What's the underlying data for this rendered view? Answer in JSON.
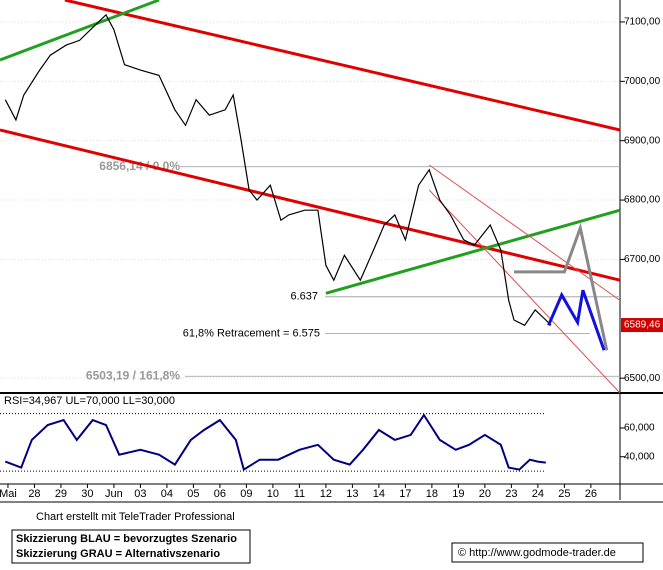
{
  "chart_data": {
    "type": "line",
    "xlim": [
      -0.3,
      23.1
    ],
    "xticks": [
      {
        "value": 0,
        "label": "Mai"
      },
      {
        "value": 1,
        "label": "28"
      },
      {
        "value": 2,
        "label": "29"
      },
      {
        "value": 3,
        "label": "30"
      },
      {
        "value": 4,
        "label": "Jun"
      },
      {
        "value": 5,
        "label": "03"
      },
      {
        "value": 6,
        "label": "04"
      },
      {
        "value": 7,
        "label": "05"
      },
      {
        "value": 8,
        "label": "06"
      },
      {
        "value": 9,
        "label": "09"
      },
      {
        "value": 10,
        "label": "10"
      },
      {
        "value": 11,
        "label": "11"
      },
      {
        "value": 12,
        "label": "12"
      },
      {
        "value": 13,
        "label": "13"
      },
      {
        "value": 14,
        "label": "14"
      },
      {
        "value": 15,
        "label": "17"
      },
      {
        "value": 16,
        "label": "18"
      },
      {
        "value": 17,
        "label": "19"
      },
      {
        "value": 18,
        "label": "20"
      },
      {
        "value": 19,
        "label": "23"
      },
      {
        "value": 20,
        "label": "24"
      },
      {
        "value": 21,
        "label": "25"
      },
      {
        "value": 22,
        "label": "26"
      }
    ],
    "ylim": [
      6475,
      7137
    ],
    "yticks": [
      {
        "value": 7100,
        "label": "7100,00"
      },
      {
        "value": 7000,
        "label": "7000,00"
      },
      {
        "value": 6900,
        "label": "6900,00"
      },
      {
        "value": 6800,
        "label": "6800,00"
      },
      {
        "value": 6700,
        "label": "6700,00"
      },
      {
        "value": 6500,
        "label": "6500,00"
      }
    ],
    "last_price": {
      "value": 6589.46,
      "label": "6589,46",
      "color": "#d00000"
    },
    "series": [
      {
        "color": "#000000",
        "x": [
          -0.1,
          0.3,
          0.6,
          1.2,
          1.6,
          2.2,
          2.7,
          3.3,
          3.7,
          4.0,
          4.4,
          5.0,
          5.7,
          6.3,
          6.7,
          7.1,
          7.6,
          8.2,
          8.5,
          8.8,
          9.1,
          9.4,
          9.9,
          10.3,
          10.6,
          11.2,
          11.7,
          12.0,
          12.3,
          12.7,
          13.3,
          13.8,
          14.2,
          14.6,
          15.0,
          15.5,
          15.9,
          16.3,
          16.7,
          17.2,
          17.6,
          18.2,
          18.6,
          18.9,
          19.1,
          19.5,
          19.9,
          20.3,
          20.5
        ],
        "values": [
          6969,
          6935,
          6977,
          7019,
          7044,
          7061,
          7069,
          7095,
          7112,
          7087,
          7028,
          7019,
          7010,
          6952,
          6926,
          6969,
          6943,
          6952,
          6977,
          6901,
          6817,
          6800,
          6825,
          6766,
          6775,
          6783,
          6783,
          6690,
          6665,
          6707,
          6665,
          6716,
          6758,
          6775,
          6733,
          6825,
          6851,
          6800,
          6775,
          6733,
          6724,
          6758,
          6716,
          6631,
          6598,
          6589,
          6615,
          6598,
          6589
        ]
      }
    ],
    "trendlines": [
      {
        "color": "#e00000",
        "x": [
          2.15,
          23.1
        ],
        "values": [
          7137,
          6918
        ]
      },
      {
        "color": "#e00000",
        "x": [
          -0.3,
          23.1
        ],
        "values": [
          6918,
          6665
        ]
      },
      {
        "color": "#20a020",
        "x": [
          -0.3,
          5.7
        ],
        "values": [
          7036,
          7137
        ]
      },
      {
        "color": "#20a020",
        "x": [
          12.0,
          23.1
        ],
        "values": [
          6643,
          6783
        ]
      },
      {
        "color": "#e05050",
        "x": [
          15.9,
          23.1
        ],
        "values": [
          6859,
          6631
        ]
      },
      {
        "color": "#e05050",
        "x": [
          15.9,
          23.1
        ],
        "values": [
          6817,
          6475
        ]
      }
    ],
    "scenarios": [
      {
        "name": "Skizzierung BLAU = bevorzugtes Szenario",
        "color": "#1010e0",
        "x": [
          20.4,
          20.9,
          21.5,
          21.7,
          22.5
        ],
        "values": [
          6589,
          6640,
          6594,
          6648,
          6547
        ]
      },
      {
        "name": "Skizzierung GRAU = Alternativszenario",
        "color": "#888888",
        "x": [
          19.1,
          21.0,
          21.6,
          22.6
        ],
        "values": [
          6679,
          6679,
          6753,
          6547
        ]
      }
    ],
    "levels": [
      {
        "value": 6856.14,
        "label": "6856,14 / 0.0%"
      },
      {
        "value": 6637,
        "label": "6.637"
      },
      {
        "value": 6575,
        "label": "61,8% Retracement = 6.575"
      },
      {
        "value": 6503.19,
        "label": "6503,19 / 161,8%"
      }
    ],
    "rsi": {
      "title": "RSI=34,967 UL=70,000 LL=30,000",
      "color": "#000080",
      "ylim": [
        21,
        83
      ],
      "yticks": [
        {
          "value": 60,
          "label": "60,000"
        },
        {
          "value": 40,
          "label": "40,000"
        }
      ],
      "bands": [
        70,
        30
      ],
      "x": [
        -0.1,
        0.5,
        0.9,
        1.5,
        2.1,
        2.6,
        3.2,
        3.7,
        4.2,
        5.0,
        5.7,
        6.3,
        6.9,
        7.4,
        8.0,
        8.6,
        8.9,
        9.5,
        10.2,
        11.0,
        11.7,
        12.3,
        12.9,
        13.4,
        14.0,
        14.6,
        15.2,
        15.7,
        16.3,
        16.9,
        17.4,
        18.0,
        18.6,
        18.9,
        19.3,
        19.7,
        20.0,
        20.3
      ],
      "values": [
        36.6,
        32.4,
        51.7,
        62.1,
        65.5,
        51.7,
        65.5,
        62.1,
        41.4,
        44.8,
        41.4,
        34.5,
        51.7,
        58.6,
        65.5,
        51.7,
        31.0,
        37.9,
        37.9,
        44.8,
        48.3,
        37.9,
        34.5,
        44.8,
        58.6,
        51.7,
        55.2,
        69.0,
        51.7,
        44.8,
        48.3,
        55.2,
        48.3,
        32.4,
        31.0,
        37.9,
        36.6,
        35.9
      ]
    },
    "credit": "Chart erstellt mit TeleTrader Professional",
    "source": "© http://www.godmode-trader.de"
  }
}
